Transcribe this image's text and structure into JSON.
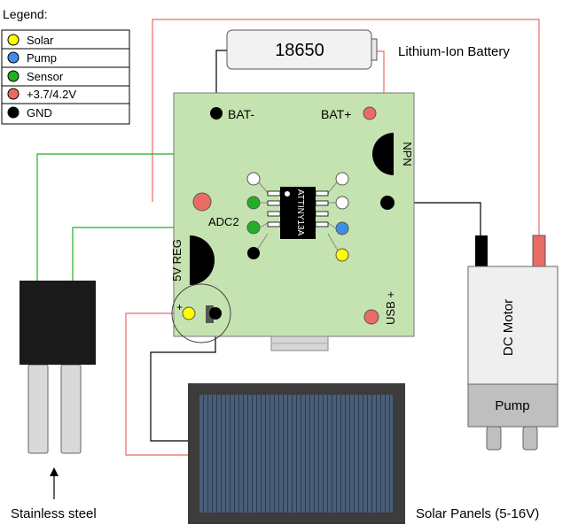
{
  "legend": {
    "title": "Legend:",
    "items": [
      {
        "label": "Solar",
        "color": "#ffff00"
      },
      {
        "label": "Pump",
        "color": "#3b8fe8"
      },
      {
        "label": "Sensor",
        "color": "#22b022"
      },
      {
        "label": "+3.7/4.2V",
        "color": "#ea6b66"
      },
      {
        "label": "GND",
        "color": "#000000"
      }
    ]
  },
  "battery": {
    "label": "18650",
    "caption": "Lithium-Ion Battery"
  },
  "board": {
    "bat_minus": "BAT-",
    "bat_plus": "BAT+",
    "npn": "NPN",
    "chip": "ATTINY13A",
    "adc": "ADC2",
    "regulator": "5V REG",
    "usb": "USB +",
    "cap_plus": "+"
  },
  "motor": {
    "label": "DC Motor",
    "pump": "Pump"
  },
  "sensor_caption": "Stainless steel",
  "solar_caption": "Solar Panels (5-16V)",
  "colors": {
    "board": "#c5e3b0",
    "solar": "#ffff00",
    "pump": "#3b8fe8",
    "sensor": "#22b022",
    "power": "#ea6b66",
    "gnd": "#000000",
    "wire_red": "#e86a6a",
    "panel_frame": "#3c3c3c",
    "panel_cells": "#465870",
    "motor_body": "#efefef",
    "motor_pump": "#bfbfbf"
  }
}
